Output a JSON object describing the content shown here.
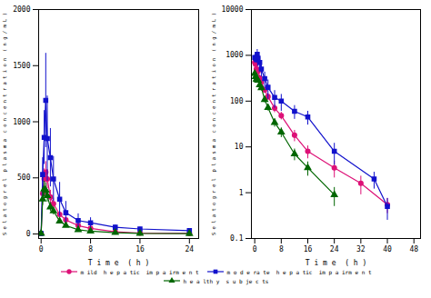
{
  "chart_data": [
    {
      "type": "line",
      "x_label": "T i m e  ( h )",
      "y_label": "S e l a t o g r e l  p l a s m a  c o n c e n t r a t i o n  ( n g / m L )",
      "x": [
        0,
        0.25,
        0.5,
        0.75,
        1.0,
        1.5,
        2.0,
        3.0,
        4.0,
        6.0,
        8.0,
        12.0,
        16.0,
        24.0
      ],
      "series": [
        {
          "name": "m ild  h e p a tic  im p a irm e n t",
          "color": "#dd1177",
          "marker": "circle",
          "values": [
            5,
            360,
            490,
            550,
            490,
            330,
            270,
            175,
            125,
            75,
            50,
            20,
            8,
            5
          ],
          "error_lo": [
            3,
            70,
            90,
            95,
            85,
            60,
            50,
            30,
            25,
            15,
            10,
            5,
            3,
            2
          ],
          "error_hi": [
            3,
            70,
            90,
            95,
            85,
            60,
            50,
            30,
            25,
            15,
            10,
            5,
            3,
            2
          ]
        },
        {
          "name": "m o d e ra te  h e p a tic  im p a irm e n t",
          "color": "#1111cc",
          "marker": "square",
          "values": [
            5,
            530,
            860,
            1190,
            850,
            680,
            490,
            310,
            190,
            120,
            100,
            60,
            45,
            30
          ],
          "error_lo": [
            3,
            150,
            240,
            420,
            380,
            260,
            200,
            150,
            100,
            60,
            45,
            20,
            15,
            10
          ],
          "error_hi": [
            3,
            150,
            240,
            420,
            380,
            260,
            200,
            150,
            100,
            60,
            45,
            20,
            15,
            10
          ]
        },
        {
          "name": "h e a lth y  s u b je c ts",
          "color": "#006600",
          "marker": "triangle",
          "values": [
            5,
            310,
            400,
            390,
            340,
            240,
            205,
            115,
            75,
            38,
            25,
            12,
            5,
            3
          ],
          "error_lo": [
            3,
            55,
            70,
            65,
            55,
            40,
            35,
            20,
            14,
            8,
            6,
            3,
            2,
            1
          ],
          "error_hi": [
            3,
            55,
            70,
            65,
            55,
            40,
            35,
            20,
            14,
            8,
            6,
            3,
            2,
            1
          ]
        }
      ],
      "xlim": [
        -0.4,
        25.5
      ],
      "xticks": [
        0,
        8,
        16,
        24
      ],
      "ylim": [
        -40,
        2000
      ],
      "yticks": [
        0,
        500,
        1000,
        1500,
        2000
      ],
      "legend": "bottom"
    },
    {
      "type": "line",
      "x_label": "T i m e  ( h )",
      "y_label": "S e l a t o g r e l  p l a s m a  c o n c e n t r a t i o n  ( n g / m L )",
      "series": [
        {
          "name": "m ild  h e p a tic  im p a irm e n t",
          "color": "#dd1177",
          "marker": "circle",
          "x": [
            0,
            0.25,
            0.5,
            0.75,
            1.0,
            1.5,
            2.0,
            3.0,
            4.0,
            6.0,
            8.0,
            12.0,
            16.0,
            24.0,
            32.0,
            40.0
          ],
          "values": [
            700,
            640,
            500,
            490,
            450,
            320,
            260,
            175,
            125,
            70,
            48,
            18,
            8,
            3.5,
            1.6,
            0.55
          ],
          "error_lo": [
            100,
            85,
            70,
            80,
            70,
            50,
            40,
            28,
            22,
            14,
            9,
            5,
            2.5,
            1.4,
            0.7,
            0.2
          ],
          "error_hi": [
            100,
            85,
            70,
            80,
            70,
            50,
            40,
            28,
            22,
            14,
            9,
            5,
            2.5,
            1.4,
            0.7,
            0.2
          ]
        },
        {
          "name": "m o d e ra te  h e p a tic  im p a irm e n t",
          "color": "#1111cc",
          "marker": "square",
          "x": [
            0,
            0.25,
            0.5,
            0.75,
            1.0,
            1.5,
            2.0,
            3.0,
            4.0,
            6.0,
            8.0,
            12.0,
            16.0,
            24.0,
            36.0,
            40.0
          ],
          "values": [
            900,
            870,
            800,
            1050,
            870,
            700,
            500,
            310,
            200,
            120,
            100,
            60,
            45,
            8,
            2.0,
            0.5
          ],
          "error_lo": [
            130,
            120,
            130,
            290,
            300,
            200,
            160,
            120,
            90,
            50,
            40,
            20,
            15,
            4,
            0.8,
            0.25
          ],
          "error_hi": [
            130,
            120,
            130,
            290,
            300,
            200,
            160,
            120,
            90,
            50,
            40,
            20,
            15,
            4,
            0.8,
            0.25
          ]
        },
        {
          "name": "h e a lth y  s u b je c ts",
          "color": "#006600",
          "marker": "triangle",
          "x": [
            0,
            0.25,
            0.5,
            0.75,
            1.0,
            1.5,
            2.0,
            3.0,
            4.0,
            6.0,
            8.0,
            12.0,
            16.0,
            24.0
          ],
          "values": [
            400,
            340,
            300,
            295,
            285,
            225,
            195,
            108,
            72,
            34,
            21,
            7,
            3.5,
            0.9
          ],
          "error_lo": [
            55,
            50,
            40,
            38,
            38,
            32,
            28,
            16,
            11,
            7,
            5,
            2,
            1.2,
            0.4
          ],
          "error_hi": [
            55,
            50,
            40,
            38,
            38,
            32,
            28,
            16,
            11,
            7,
            5,
            2,
            1.2,
            0.4
          ]
        }
      ],
      "xlim": [
        -1,
        50
      ],
      "xticks": [
        0,
        8,
        16,
        24,
        32,
        40,
        48
      ],
      "ylim": [
        0.1,
        10000
      ],
      "yticks": [
        0.1,
        1,
        10,
        100,
        1000,
        10000
      ],
      "log": "y"
    }
  ]
}
